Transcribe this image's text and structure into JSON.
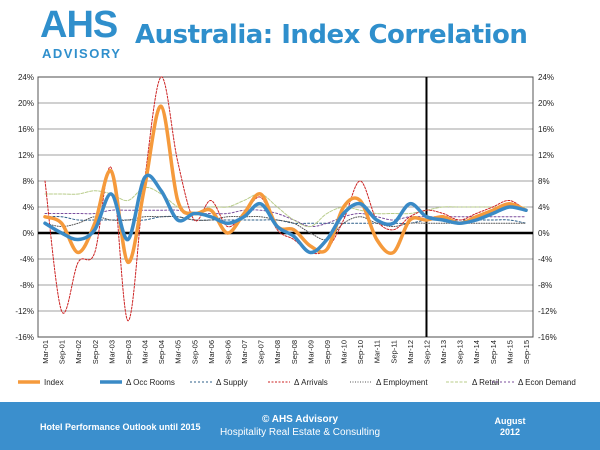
{
  "header": {
    "logo_text": "AHS",
    "logo_subtext": "ADVISORY",
    "title": "Australia: Index Correlation"
  },
  "footer": {
    "left": "Hotel Performance Outlook until 2015",
    "center_line1": "© AHS Advisory",
    "center_line2": "Hospitality Real Estate & Consulting",
    "right_line1": "August",
    "right_line2": "2012"
  },
  "colors": {
    "index": "#f59a3c",
    "occ_rooms": "#3a8ac6",
    "supply": "#2e5f8a",
    "arrivals": "#cc2222",
    "employment": "#555555",
    "retail": "#b8cc8a",
    "econ_demand": "#7b4f9e",
    "brand": "#2f8fcc"
  },
  "chart_data": {
    "type": "line",
    "title": "",
    "xlabel": "",
    "ylabel": "",
    "ylim": [
      -16,
      24
    ],
    "yticks": [
      "24%",
      "20%",
      "16%",
      "12%",
      "8%",
      "4%",
      "0%",
      "-4%",
      "-8%",
      "-12%",
      "-16%"
    ],
    "grid": true,
    "legend": "bottom",
    "forecast_marker": "Sep-12",
    "x_labels": [
      "Mar-01",
      "Sep-01",
      "Mar-02",
      "Sep-02",
      "Mar-03",
      "Sep-03",
      "Mar-04",
      "Sep-04",
      "Mar-05",
      "Sep-05",
      "Mar-06",
      "Sep-06",
      "Mar-07",
      "Sep-07",
      "Mar-08",
      "Sep-08",
      "Mar-09",
      "Sep-09",
      "Mar-10",
      "Sep-10",
      "Mar-11",
      "Sep-11",
      "Mar-12",
      "Sep-12",
      "Mar-13",
      "Sep-13",
      "Mar-14",
      "Sep-14",
      "Mar-15",
      "Sep-15"
    ],
    "series": [
      {
        "name": "Index",
        "values": [
          2.5,
          1.5,
          -3.0,
          1.5,
          9.5,
          -4.5,
          7.0,
          19.5,
          5.0,
          3.0,
          3.5,
          0.0,
          3.0,
          6.0,
          1.0,
          0.5,
          -2.0,
          -2.5,
          4.0,
          5.0,
          -1.0,
          -3.0,
          2.0,
          2.0,
          2.5,
          1.5,
          2.5,
          3.5,
          4.5,
          3.5
        ]
      },
      {
        "name": "Δ Occ Rooms",
        "values": [
          1.5,
          0.0,
          -1.0,
          0.5,
          6.0,
          -1.0,
          8.5,
          6.5,
          2.0,
          3.0,
          2.5,
          1.5,
          2.5,
          4.5,
          1.0,
          -0.5,
          -3.0,
          -1.0,
          3.0,
          4.5,
          2.0,
          1.5,
          4.5,
          2.5,
          2.0,
          1.5,
          2.0,
          3.0,
          4.0,
          3.5
        ]
      },
      {
        "name": "Δ Supply",
        "values": [
          2.5,
          2.5,
          2.0,
          2.0,
          2.0,
          2.0,
          2.0,
          2.5,
          2.5,
          2.0,
          2.0,
          2.0,
          2.0,
          2.0,
          2.0,
          1.5,
          1.5,
          1.5,
          1.5,
          1.5,
          1.5,
          1.5,
          1.5,
          2.0,
          2.0,
          2.0,
          2.0,
          2.0,
          2.0,
          1.5
        ]
      },
      {
        "name": "Δ Arrivals",
        "values": [
          8.0,
          -12.0,
          -4.5,
          -3.0,
          10.0,
          -13.5,
          8.0,
          24.0,
          11.0,
          2.0,
          5.0,
          1.0,
          3.0,
          5.5,
          0.5,
          -1.0,
          -3.0,
          -2.5,
          2.0,
          8.0,
          2.0,
          0.5,
          2.5,
          3.5,
          3.0,
          2.0,
          3.0,
          4.0,
          5.0,
          3.5
        ]
      },
      {
        "name": "Δ Employment",
        "values": [
          1.5,
          1.0,
          1.5,
          2.5,
          2.0,
          2.0,
          2.5,
          2.5,
          2.5,
          2.0,
          2.0,
          2.5,
          2.5,
          2.5,
          2.0,
          1.5,
          0.0,
          -1.0,
          1.5,
          2.5,
          1.5,
          1.0,
          1.5,
          1.5,
          1.5,
          1.5,
          1.5,
          1.5,
          1.5,
          1.5
        ]
      },
      {
        "name": "Δ Retail",
        "values": [
          6.0,
          6.0,
          6.0,
          6.5,
          6.0,
          5.0,
          7.0,
          6.0,
          4.0,
          3.0,
          4.0,
          4.0,
          5.0,
          6.0,
          4.0,
          2.0,
          1.0,
          3.0,
          4.0,
          3.5,
          3.0,
          3.0,
          3.0,
          3.5,
          4.0,
          4.0,
          4.0,
          4.0,
          4.0,
          4.0
        ]
      },
      {
        "name": "Δ Econ Demand",
        "values": [
          3.0,
          3.0,
          3.0,
          3.0,
          3.5,
          3.5,
          3.5,
          3.5,
          3.5,
          3.0,
          3.0,
          3.0,
          3.5,
          3.5,
          3.0,
          2.0,
          1.0,
          1.5,
          2.5,
          3.0,
          2.5,
          2.0,
          2.5,
          2.5,
          2.5,
          2.5,
          2.5,
          2.5,
          2.5,
          2.5
        ]
      }
    ]
  }
}
